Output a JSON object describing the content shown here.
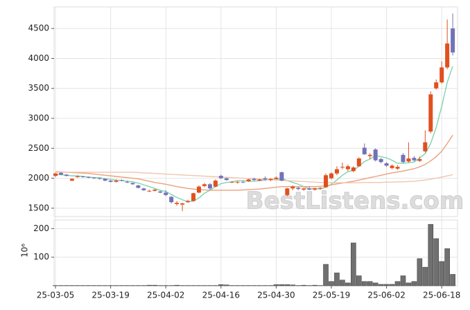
{
  "chart_data": [
    {
      "type": "candlestick",
      "open": [
        2040,
        2090,
        2060,
        1960,
        2020,
        2030,
        2020,
        2010,
        2000,
        1990,
        1960,
        1940,
        1970,
        1940,
        1920,
        1880,
        1830,
        1780,
        1790,
        1780,
        1760,
        1690,
        1570,
        1560,
        1600,
        1620,
        1760,
        1870,
        1900,
        1860,
        2040,
        2000,
        1940,
        1930,
        1940,
        1950,
        1990,
        1960,
        2000,
        1970,
        1990,
        2100,
        1720,
        1830,
        1840,
        1810,
        1830,
        1810,
        1830,
        1850,
        2000,
        2080,
        2180,
        2150,
        2120,
        2200,
        2510,
        2370,
        2480,
        2320,
        2250,
        2170,
        2160,
        2390,
        2280,
        2340,
        2290,
        2450,
        2780,
        3500,
        3600,
        3850,
        4500
      ],
      "high": [
        2090,
        2100,
        2070,
        2000,
        2050,
        2040,
        2030,
        2020,
        2010,
        2000,
        1970,
        1980,
        1980,
        1960,
        1930,
        1890,
        1840,
        1810,
        1820,
        1790,
        1800,
        1700,
        1620,
        1590,
        1640,
        1760,
        1880,
        1920,
        1920,
        1980,
        2060,
        2010,
        1950,
        1950,
        1960,
        1990,
        2010,
        1990,
        2030,
        2000,
        2030,
        2110,
        1840,
        1880,
        1860,
        1840,
        1860,
        1840,
        1850,
        2080,
        2100,
        2200,
        2260,
        2230,
        2200,
        2350,
        2580,
        2420,
        2500,
        2340,
        2270,
        2230,
        2220,
        2420,
        2600,
        2370,
        2360,
        2800,
        3450,
        3650,
        3950,
        4650,
        4750
      ],
      "low": [
        2020,
        2050,
        2030,
        1950,
        2010,
        2010,
        2000,
        1990,
        1980,
        1950,
        1930,
        1930,
        1950,
        1920,
        1890,
        1830,
        1790,
        1770,
        1780,
        1750,
        1700,
        1580,
        1540,
        1450,
        1590,
        1610,
        1750,
        1850,
        1800,
        1850,
        1990,
        1960,
        1920,
        1910,
        1920,
        1940,
        1960,
        1950,
        1960,
        1950,
        1980,
        1950,
        1700,
        1800,
        1800,
        1790,
        1800,
        1790,
        1810,
        1840,
        1980,
        2050,
        2150,
        2120,
        2100,
        2190,
        2390,
        2320,
        2280,
        2250,
        2190,
        2150,
        2140,
        2250,
        2260,
        2280,
        2270,
        2430,
        2750,
        3480,
        3580,
        3820,
        4050
      ],
      "close": [
        2080,
        2060,
        2040,
        1990,
        2030,
        2020,
        2010,
        2000,
        1990,
        1960,
        1940,
        1960,
        1960,
        1930,
        1900,
        1840,
        1800,
        1790,
        1810,
        1760,
        1720,
        1600,
        1590,
        1580,
        1620,
        1750,
        1860,
        1900,
        1830,
        1960,
        2000,
        1970,
        1940,
        1940,
        1930,
        1980,
        1970,
        1980,
        1980,
        1990,
        2010,
        1960,
        1830,
        1860,
        1820,
        1830,
        1810,
        1830,
        1840,
        2050,
        2080,
        2150,
        2190,
        2200,
        2180,
        2330,
        2400,
        2390,
        2300,
        2270,
        2210,
        2210,
        2190,
        2270,
        2330,
        2300,
        2320,
        2600,
        3400,
        3600,
        3850,
        4250,
        4100
      ],
      "up_color": "#e0501e",
      "down_color": "#7272b8",
      "lines": [
        {
          "color": "#7fd3b0",
          "values": [
            2060,
            2060,
            2050,
            2040,
            2040,
            2030,
            2020,
            2010,
            2010,
            1990,
            1980,
            1970,
            1960,
            1950,
            1940,
            1920,
            1890,
            1860,
            1830,
            1800,
            1780,
            1730,
            1680,
            1640,
            1610,
            1620,
            1670,
            1750,
            1800,
            1860,
            1910,
            1930,
            1940,
            1960,
            1960,
            1950,
            1950,
            1960,
            1970,
            1980,
            1980,
            2000,
            1960,
            1930,
            1900,
            1860,
            1820,
            1830,
            1820,
            1850,
            1900,
            1970,
            2050,
            2110,
            2130,
            2200,
            2280,
            2320,
            2380,
            2360,
            2340,
            2300,
            2250,
            2250,
            2260,
            2270,
            2340,
            2410,
            2580,
            2850,
            3200,
            3600,
            3870
          ]
        },
        {
          "color": "#e9a07a",
          "values": [
            2110,
            2105,
            2100,
            2095,
            2090,
            2085,
            2080,
            2070,
            2060,
            2050,
            2040,
            2030,
            2020,
            2010,
            2000,
            1990,
            1970,
            1950,
            1930,
            1915,
            1900,
            1880,
            1860,
            1845,
            1830,
            1820,
            1810,
            1805,
            1800,
            1800,
            1800,
            1800,
            1800,
            1800,
            1805,
            1810,
            1815,
            1820,
            1830,
            1840,
            1850,
            1860,
            1860,
            1860,
            1860,
            1860,
            1860,
            1860,
            1865,
            1875,
            1890,
            1905,
            1920,
            1935,
            1950,
            1970,
            1990,
            2010,
            2030,
            2050,
            2070,
            2090,
            2105,
            2120,
            2140,
            2160,
            2190,
            2230,
            2290,
            2360,
            2450,
            2580,
            2720
          ]
        },
        {
          "color": "#f2c4ac",
          "values": [
            2100,
            2100,
            2100,
            2100,
            2100,
            2100,
            2100,
            2100,
            2100,
            2100,
            2100,
            2100,
            2100,
            2100,
            2100,
            2095,
            2090,
            2085,
            2080,
            2075,
            2070,
            2065,
            2060,
            2055,
            2050,
            2045,
            2040,
            2035,
            2030,
            2025,
            2020,
            2015,
            2010,
            2005,
            2000,
            1995,
            1990,
            1985,
            1980,
            1975,
            1970,
            1965,
            1960,
            1955,
            1950,
            1945,
            1940,
            1935,
            1930,
            1930,
            1925,
            1925,
            1925,
            1925,
            1925,
            1925,
            1930,
            1930,
            1930,
            1930,
            1935,
            1935,
            1940,
            1940,
            1945,
            1950,
            1960,
            1970,
            1985,
            2000,
            2020,
            2040,
            2060
          ]
        }
      ],
      "ylim": [
        1360,
        4860
      ],
      "yticks": [
        1500,
        2000,
        2500,
        3000,
        3500,
        4000,
        4500
      ],
      "grid": true,
      "watermark": "BestListens.com"
    },
    {
      "type": "bar",
      "categories": [
        "25-03-05",
        null,
        null,
        null,
        null,
        null,
        null,
        null,
        null,
        null,
        "25-03-19",
        null,
        null,
        null,
        null,
        null,
        null,
        null,
        null,
        null,
        "25-04-02",
        null,
        null,
        null,
        null,
        null,
        null,
        null,
        null,
        null,
        "25-04-16",
        null,
        null,
        null,
        null,
        null,
        null,
        null,
        null,
        null,
        "25-04-30",
        null,
        null,
        null,
        null,
        null,
        null,
        null,
        null,
        null,
        "25-05-19",
        null,
        null,
        null,
        null,
        null,
        null,
        null,
        null,
        null,
        "25-06-02",
        null,
        null,
        null,
        null,
        null,
        null,
        null,
        null,
        null,
        "25-06-18",
        null,
        null
      ],
      "values": [
        1,
        1,
        1,
        1,
        1,
        1,
        1,
        1,
        1,
        1,
        1,
        1,
        1,
        1,
        1,
        1,
        1,
        2,
        2,
        1,
        1,
        1,
        2,
        1,
        1,
        1,
        1,
        1,
        1,
        1,
        4,
        3,
        1,
        1,
        1,
        1,
        1,
        1,
        1,
        1,
        4,
        4,
        4,
        3,
        1,
        2,
        1,
        2,
        1,
        75,
        15,
        45,
        20,
        10,
        150,
        35,
        15,
        15,
        10,
        5,
        5,
        5,
        15,
        35,
        10,
        15,
        95,
        65,
        215,
        165,
        85,
        130,
        40
      ],
      "color": "#707070",
      "ylabel": "10⁶",
      "ylim": [
        0,
        230
      ],
      "yticks": [
        100,
        200
      ],
      "grid": true
    }
  ]
}
